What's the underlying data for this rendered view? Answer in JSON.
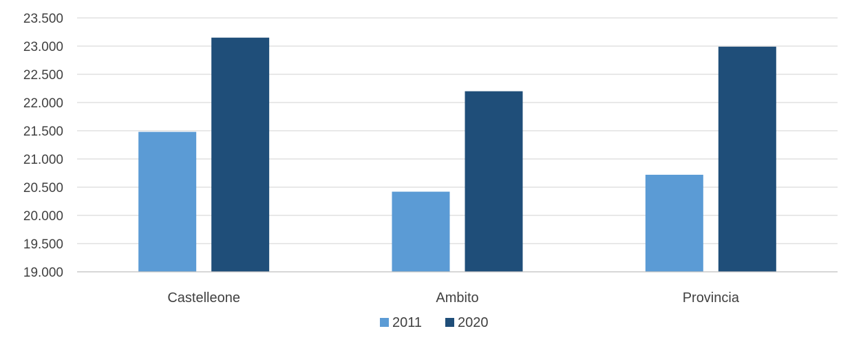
{
  "chart_data": {
    "type": "bar",
    "title": "",
    "xlabel": "",
    "ylabel": "",
    "categories": [
      "Castelleone",
      "Ambito",
      "Provincia"
    ],
    "series": [
      {
        "name": "2011",
        "color": "#5b9bd5",
        "values": [
          21480,
          20420,
          20720
        ]
      },
      {
        "name": "2020",
        "color": "#1f4e79",
        "values": [
          23150,
          22200,
          22990
        ]
      }
    ],
    "ylim": [
      19000,
      23500
    ],
    "yticks": [
      19000,
      19500,
      20000,
      20500,
      21000,
      21500,
      22000,
      22500,
      23000,
      23500
    ],
    "ytick_labels": [
      "19.000",
      "19.500",
      "20.000",
      "20.500",
      "21.000",
      "21.500",
      "22.000",
      "22.500",
      "23.000",
      "23.500"
    ],
    "grid": true,
    "legend_position": "bottom"
  }
}
